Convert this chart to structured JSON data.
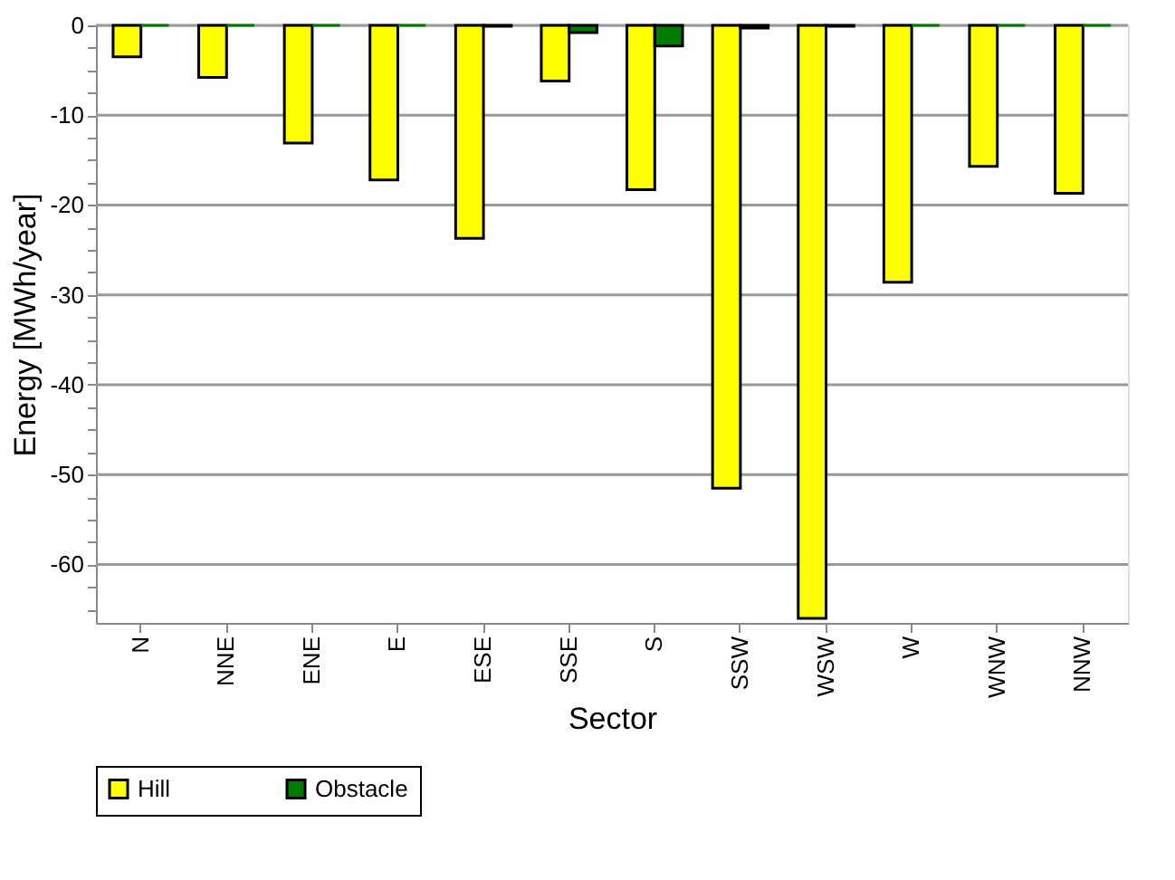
{
  "chart_data": {
    "type": "bar",
    "xlabel": "Sector",
    "ylabel": "Energy [MWh/year]",
    "categories": [
      "N",
      "NNE",
      "ENE",
      "E",
      "ESE",
      "SSE",
      "S",
      "SSW",
      "WSW",
      "W",
      "WNW",
      "NNW"
    ],
    "series": [
      {
        "name": "Hill",
        "color": "#ffff00",
        "values": [
          -3.5,
          -5.8,
          -13.1,
          -17.2,
          -23.7,
          -6.2,
          -18.3,
          -51.5,
          -66,
          -28.6,
          -15.7,
          -18.7
        ]
      },
      {
        "name": "Obstacle",
        "color": "#007a00",
        "values": [
          0,
          0,
          0,
          0,
          -0.1,
          -0.8,
          -2.3,
          -0.3,
          -0.1,
          0,
          0,
          0
        ]
      }
    ],
    "ylim": [
      -66.5,
      0
    ],
    "yticks": [
      0,
      {
        "value": -2.5,
        "label": null
      },
      {
        "value": -5,
        "label": null
      },
      {
        "value": -7.5,
        "label": null
      },
      -10,
      {
        "value": -12.5,
        "label": null
      },
      {
        "value": -15,
        "label": null
      },
      {
        "value": -17.5,
        "label": null
      },
      -20,
      {
        "value": -22.5,
        "label": null
      },
      {
        "value": -25,
        "label": null
      },
      {
        "value": -27.5,
        "label": null
      },
      -30,
      {
        "value": -32.5,
        "label": null
      },
      {
        "value": -35,
        "label": null
      },
      {
        "value": -37.5,
        "label": null
      },
      -40,
      {
        "value": -42.5,
        "label": null
      },
      {
        "value": -45,
        "label": null
      },
      {
        "value": -47.5,
        "label": null
      },
      -50,
      {
        "value": -52.5,
        "label": null
      },
      {
        "value": -55,
        "label": null
      },
      {
        "value": -57.5,
        "label": null
      },
      -60,
      {
        "value": -62.5,
        "label": null
      },
      {
        "value": -65,
        "label": null
      }
    ],
    "grid": "y",
    "legend": "bottom"
  }
}
